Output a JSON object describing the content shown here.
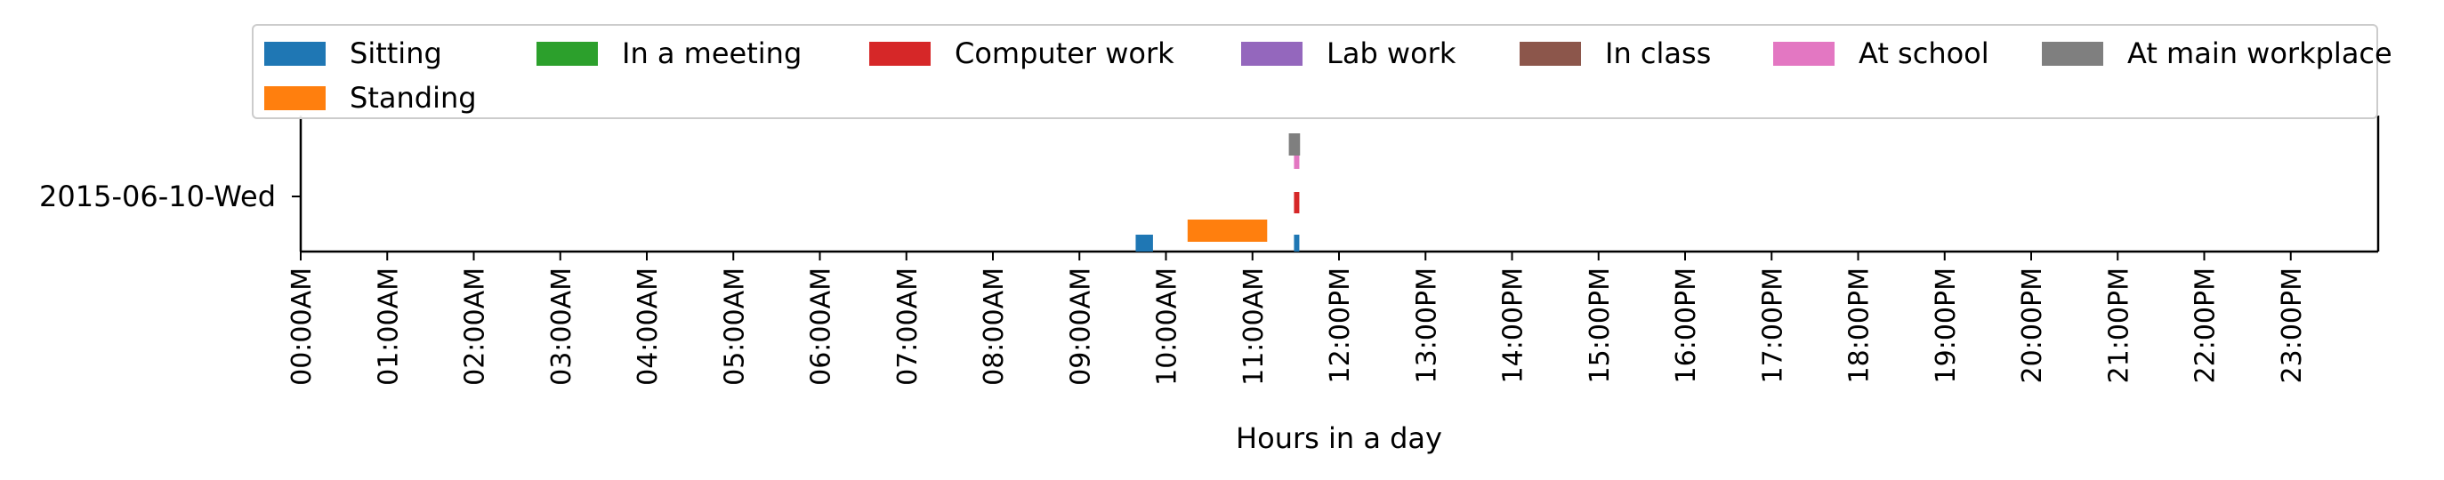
{
  "chart_data": {
    "type": "bar",
    "xlabel": "Hours in a day",
    "xlim": [
      0,
      24
    ],
    "x_tick_labels": [
      "00:00AM",
      "01:00AM",
      "02:00AM",
      "03:00AM",
      "04:00AM",
      "05:00AM",
      "06:00AM",
      "07:00AM",
      "08:00AM",
      "09:00AM",
      "10:00AM",
      "11:00AM",
      "12:00PM",
      "13:00PM",
      "14:00PM",
      "15:00PM",
      "16:00PM",
      "17:00PM",
      "18:00PM",
      "19:00PM",
      "20:00PM",
      "21:00PM",
      "22:00PM",
      "23:00PM"
    ],
    "y_categories": [
      "2015-06-10-Wed"
    ],
    "legend_position": "top",
    "series": [
      {
        "name": "Sitting",
        "color": "#1f77b4",
        "intervals": [
          [
            9.65,
            9.85
          ],
          [
            11.48,
            11.54
          ]
        ]
      },
      {
        "name": "Standing",
        "color": "#ff7f0e",
        "intervals": [
          [
            10.25,
            11.17
          ]
        ]
      },
      {
        "name": "In a meeting",
        "color": "#2ca02c",
        "intervals": []
      },
      {
        "name": "Computer work",
        "color": "#d62728",
        "intervals": [
          [
            11.48,
            11.54
          ]
        ]
      },
      {
        "name": "Lab work",
        "color": "#9467bd",
        "intervals": []
      },
      {
        "name": "In class",
        "color": "#8c564b",
        "intervals": []
      },
      {
        "name": "At school",
        "color": "#e377c2",
        "intervals": [
          [
            11.48,
            11.54
          ]
        ]
      },
      {
        "name": "At main workplace",
        "color": "#7f7f7f",
        "intervals": [
          [
            11.42,
            11.55
          ]
        ]
      }
    ]
  }
}
